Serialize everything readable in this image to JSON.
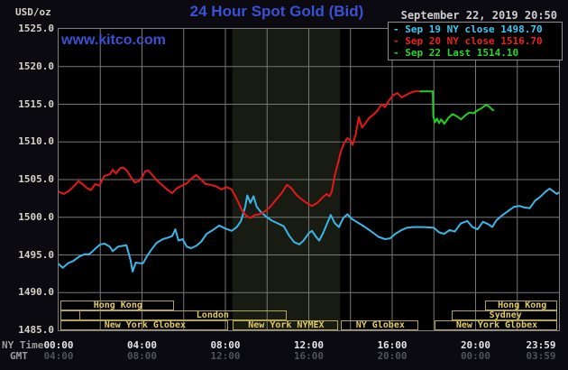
{
  "header": {
    "unit_label": "USD/oz",
    "title": "24 Hour Spot Gold (Bid)",
    "datetime": "September 22, 2019 20:50"
  },
  "watermark": "www.kitco.com",
  "legend": {
    "marker": "-",
    "items": [
      {
        "id": "sep19",
        "label": "Sep 19 NY close 1498.70",
        "color": "#3fc8f4"
      },
      {
        "id": "sep20",
        "label": "Sep 20 NY close 1516.70",
        "color": "#f02020"
      },
      {
        "id": "sep22",
        "label": "Sep 22 Last 1514.10",
        "color": "#2ed52e"
      }
    ]
  },
  "axes": {
    "ny_time_label": "NY Time",
    "gmt_label": "GMT",
    "y_ticks": [
      {
        "label": "1525.0",
        "value": 1525
      },
      {
        "label": "1520.0",
        "value": 1520
      },
      {
        "label": "1515.0",
        "value": 1515
      },
      {
        "label": "1510.0",
        "value": 1510
      },
      {
        "label": "1505.0",
        "value": 1505
      },
      {
        "label": "1500.0",
        "value": 1500
      },
      {
        "label": "1495.0",
        "value": 1495
      },
      {
        "label": "1490.0",
        "value": 1490
      },
      {
        "label": "1485.0",
        "value": 1485
      }
    ],
    "x_ticks_ny": [
      {
        "label": "00:00",
        "hour": 0
      },
      {
        "label": "04:00",
        "hour": 4
      },
      {
        "label": "08:00",
        "hour": 8
      },
      {
        "label": "12:00",
        "hour": 12
      },
      {
        "label": "16:00",
        "hour": 16
      },
      {
        "label": "20:00",
        "hour": 20
      },
      {
        "label": "23:59",
        "hour": 24
      }
    ],
    "x_ticks_gmt": [
      {
        "label": "04:00",
        "hour": 0
      },
      {
        "label": "08:00",
        "hour": 4
      },
      {
        "label": "12:00",
        "hour": 8
      },
      {
        "label": "16:00",
        "hour": 12
      },
      {
        "label": "20:00",
        "hour": 16
      },
      {
        "label": "00:00",
        "hour": 20
      },
      {
        "label": "03:59",
        "hour": 24
      }
    ]
  },
  "sessions": {
    "border_color": "#b5a44c",
    "text_color": "#e2cb63",
    "rows": [
      [
        {
          "label": "Hong Kong",
          "start": 0.07,
          "end": 5.5
        },
        {
          "label": "Hong Kong",
          "start": 20.45,
          "end": 23.93
        }
      ],
      [
        {
          "label": "",
          "start": 0.07,
          "end": 1.0
        },
        {
          "label": "London",
          "start": 1.0,
          "end": 10.95,
          "label_at": 7.35
        },
        {
          "label": "Sydney",
          "start": 18.85,
          "end": 23.93
        }
      ],
      [
        {
          "label": "New York Globex",
          "start": 0.07,
          "end": 8.1
        },
        {
          "label": "New York NYMEX",
          "start": 8.35,
          "end": 13.4
        },
        {
          "label": "NY Globex",
          "start": 13.55,
          "end": 17.25
        },
        {
          "label": "New York Globex",
          "start": 18.05,
          "end": 23.93
        }
      ]
    ]
  },
  "chart_data": {
    "type": "line",
    "title": "24 Hour Spot Gold (Bid)",
    "xlabel": "NY Time (hours 00:00-23:59)",
    "ylabel": "USD/oz",
    "x_range": [
      0,
      24
    ],
    "y_range": [
      1485,
      1525
    ],
    "x_grid_step_hours": 2,
    "y_grid_step": 5,
    "grid_color": "#787878",
    "plot_bg": "#000000",
    "band": {
      "name": "nymex-floor-session",
      "start_hour": 8.33,
      "end_hour": 13.5,
      "color": "#171b12"
    },
    "series": [
      {
        "name": "Sep 19 (NY close 1498.70)",
        "color": "#3ab6e8",
        "points": [
          [
            0,
            1493.8
          ],
          [
            0.2,
            1493.3
          ],
          [
            0.45,
            1493.9
          ],
          [
            0.7,
            1494.2
          ],
          [
            1.0,
            1494.8
          ],
          [
            1.25,
            1495.1
          ],
          [
            1.45,
            1495.1
          ],
          [
            1.6,
            1495.4
          ],
          [
            1.75,
            1495.8
          ],
          [
            2.0,
            1496.4
          ],
          [
            2.2,
            1496.5
          ],
          [
            2.45,
            1496.1
          ],
          [
            2.6,
            1495.5
          ],
          [
            2.85,
            1496.1
          ],
          [
            3.05,
            1496.2
          ],
          [
            3.25,
            1496.3
          ],
          [
            3.45,
            1494.3
          ],
          [
            3.55,
            1492.8
          ],
          [
            3.7,
            1494.0
          ],
          [
            3.9,
            1493.9
          ],
          [
            4.05,
            1493.9
          ],
          [
            4.25,
            1494.9
          ],
          [
            4.45,
            1495.7
          ],
          [
            4.7,
            1496.6
          ],
          [
            5.0,
            1497.1
          ],
          [
            5.25,
            1497.3
          ],
          [
            5.45,
            1497.5
          ],
          [
            5.6,
            1498.4
          ],
          [
            5.75,
            1496.9
          ],
          [
            5.95,
            1497.1
          ],
          [
            6.15,
            1496.1
          ],
          [
            6.35,
            1495.9
          ],
          [
            6.6,
            1496.2
          ],
          [
            6.85,
            1496.8
          ],
          [
            7.1,
            1497.8
          ],
          [
            7.4,
            1498.3
          ],
          [
            7.7,
            1498.9
          ],
          [
            8.0,
            1498.5
          ],
          [
            8.3,
            1498.2
          ],
          [
            8.55,
            1498.7
          ],
          [
            8.75,
            1499.5
          ],
          [
            8.95,
            1501.4
          ],
          [
            9.05,
            1502.9
          ],
          [
            9.2,
            1501.9
          ],
          [
            9.35,
            1502.8
          ],
          [
            9.5,
            1501.4
          ],
          [
            9.7,
            1500.7
          ],
          [
            9.95,
            1500.1
          ],
          [
            10.2,
            1499.6
          ],
          [
            10.5,
            1499.2
          ],
          [
            10.8,
            1498.8
          ],
          [
            11.05,
            1497.6
          ],
          [
            11.3,
            1496.7
          ],
          [
            11.55,
            1496.4
          ],
          [
            11.75,
            1496.9
          ],
          [
            12.0,
            1497.9
          ],
          [
            12.15,
            1498.2
          ],
          [
            12.35,
            1497.4
          ],
          [
            12.5,
            1496.9
          ],
          [
            12.7,
            1498.0
          ],
          [
            12.9,
            1499.3
          ],
          [
            13.05,
            1500.3
          ],
          [
            13.25,
            1499.2
          ],
          [
            13.45,
            1498.7
          ],
          [
            13.65,
            1499.9
          ],
          [
            13.85,
            1500.4
          ],
          [
            14.05,
            1499.8
          ],
          [
            14.35,
            1499.3
          ],
          [
            14.7,
            1498.7
          ],
          [
            15.0,
            1498.1
          ],
          [
            15.35,
            1497.4
          ],
          [
            15.65,
            1497.1
          ],
          [
            15.9,
            1497.2
          ],
          [
            16.15,
            1497.8
          ],
          [
            16.45,
            1498.3
          ],
          [
            16.7,
            1498.6
          ],
          [
            17.0,
            1498.7
          ],
          [
            17.5,
            1498.7
          ],
          [
            18.0,
            1498.6
          ],
          [
            18.25,
            1498.0
          ],
          [
            18.5,
            1497.8
          ],
          [
            18.75,
            1498.3
          ],
          [
            19.0,
            1498.1
          ],
          [
            19.3,
            1499.2
          ],
          [
            19.6,
            1499.5
          ],
          [
            19.85,
            1498.7
          ],
          [
            20.1,
            1498.4
          ],
          [
            20.35,
            1499.4
          ],
          [
            20.6,
            1499.1
          ],
          [
            20.8,
            1498.7
          ],
          [
            21.0,
            1499.6
          ],
          [
            21.3,
            1500.3
          ],
          [
            21.6,
            1500.9
          ],
          [
            21.85,
            1501.4
          ],
          [
            22.1,
            1501.5
          ],
          [
            22.35,
            1501.3
          ],
          [
            22.6,
            1501.2
          ],
          [
            22.85,
            1502.2
          ],
          [
            23.1,
            1502.7
          ],
          [
            23.35,
            1503.4
          ],
          [
            23.55,
            1503.8
          ],
          [
            23.75,
            1503.4
          ],
          [
            23.9,
            1503.1
          ],
          [
            24.0,
            1503.3
          ]
        ]
      },
      {
        "name": "Sep 20 (NY close 1516.70)",
        "color": "#e61717",
        "points": [
          [
            0,
            1503.4
          ],
          [
            0.25,
            1503.1
          ],
          [
            0.5,
            1503.5
          ],
          [
            0.8,
            1504.3
          ],
          [
            0.95,
            1504.8
          ],
          [
            1.15,
            1504.4
          ],
          [
            1.35,
            1503.9
          ],
          [
            1.55,
            1503.6
          ],
          [
            1.75,
            1504.4
          ],
          [
            1.95,
            1504.2
          ],
          [
            2.2,
            1505.5
          ],
          [
            2.45,
            1505.7
          ],
          [
            2.6,
            1506.3
          ],
          [
            2.75,
            1505.8
          ],
          [
            2.95,
            1506.5
          ],
          [
            3.1,
            1506.6
          ],
          [
            3.3,
            1506.1
          ],
          [
            3.5,
            1505.2
          ],
          [
            3.65,
            1504.6
          ],
          [
            3.85,
            1504.8
          ],
          [
            4.0,
            1505.3
          ],
          [
            4.15,
            1506.1
          ],
          [
            4.3,
            1506.2
          ],
          [
            4.5,
            1505.6
          ],
          [
            4.7,
            1504.9
          ],
          [
            4.95,
            1504.3
          ],
          [
            5.2,
            1503.7
          ],
          [
            5.45,
            1503.2
          ],
          [
            5.65,
            1503.8
          ],
          [
            5.9,
            1504.2
          ],
          [
            6.15,
            1504.5
          ],
          [
            6.4,
            1505.2
          ],
          [
            6.6,
            1505.6
          ],
          [
            6.8,
            1505.1
          ],
          [
            7.05,
            1504.4
          ],
          [
            7.3,
            1504.3
          ],
          [
            7.55,
            1504.1
          ],
          [
            7.8,
            1503.7
          ],
          [
            8.05,
            1504.0
          ],
          [
            8.3,
            1503.7
          ],
          [
            8.55,
            1502.4
          ],
          [
            8.8,
            1500.9
          ],
          [
            9.0,
            1500.2
          ],
          [
            9.2,
            1499.9
          ],
          [
            9.4,
            1500.3
          ],
          [
            9.65,
            1500.4
          ],
          [
            9.9,
            1500.8
          ],
          [
            10.15,
            1501.4
          ],
          [
            10.45,
            1502.4
          ],
          [
            10.7,
            1503.2
          ],
          [
            10.95,
            1504.3
          ],
          [
            11.15,
            1503.9
          ],
          [
            11.4,
            1503.0
          ],
          [
            11.65,
            1502.4
          ],
          [
            11.9,
            1501.9
          ],
          [
            12.15,
            1501.5
          ],
          [
            12.4,
            1501.9
          ],
          [
            12.65,
            1502.6
          ],
          [
            12.85,
            1503.1
          ],
          [
            13.0,
            1502.8
          ],
          [
            13.1,
            1503.4
          ],
          [
            13.25,
            1505.6
          ],
          [
            13.4,
            1507.2
          ],
          [
            13.55,
            1508.8
          ],
          [
            13.7,
            1509.9
          ],
          [
            13.85,
            1510.5
          ],
          [
            14.0,
            1510.2
          ],
          [
            14.1,
            1509.6
          ],
          [
            14.25,
            1511.0
          ],
          [
            14.4,
            1513.3
          ],
          [
            14.55,
            1511.9
          ],
          [
            14.7,
            1512.4
          ],
          [
            14.9,
            1513.2
          ],
          [
            15.1,
            1513.6
          ],
          [
            15.3,
            1514.2
          ],
          [
            15.5,
            1515.0
          ],
          [
            15.65,
            1514.6
          ],
          [
            15.85,
            1515.5
          ],
          [
            16.05,
            1516.2
          ],
          [
            16.25,
            1516.5
          ],
          [
            16.45,
            1515.9
          ],
          [
            16.65,
            1516.2
          ],
          [
            16.85,
            1516.5
          ],
          [
            17.05,
            1516.7
          ],
          [
            17.35,
            1516.7
          ]
        ]
      },
      {
        "name": "Sep 22 (Last 1514.10)",
        "color": "#1fd01f",
        "points": [
          [
            17.35,
            1516.7
          ],
          [
            17.95,
            1516.7
          ],
          [
            17.97,
            1513.4
          ],
          [
            18.05,
            1512.6
          ],
          [
            18.15,
            1513.1
          ],
          [
            18.25,
            1512.5
          ],
          [
            18.35,
            1513.0
          ],
          [
            18.5,
            1512.4
          ],
          [
            18.7,
            1513.2
          ],
          [
            18.9,
            1513.7
          ],
          [
            19.1,
            1513.4
          ],
          [
            19.3,
            1513.0
          ],
          [
            19.5,
            1513.5
          ],
          [
            19.7,
            1513.9
          ],
          [
            19.9,
            1513.8
          ],
          [
            20.1,
            1514.2
          ],
          [
            20.3,
            1514.5
          ],
          [
            20.5,
            1514.9
          ],
          [
            20.65,
            1514.7
          ],
          [
            20.75,
            1514.4
          ],
          [
            20.85,
            1514.2
          ]
        ]
      }
    ]
  }
}
